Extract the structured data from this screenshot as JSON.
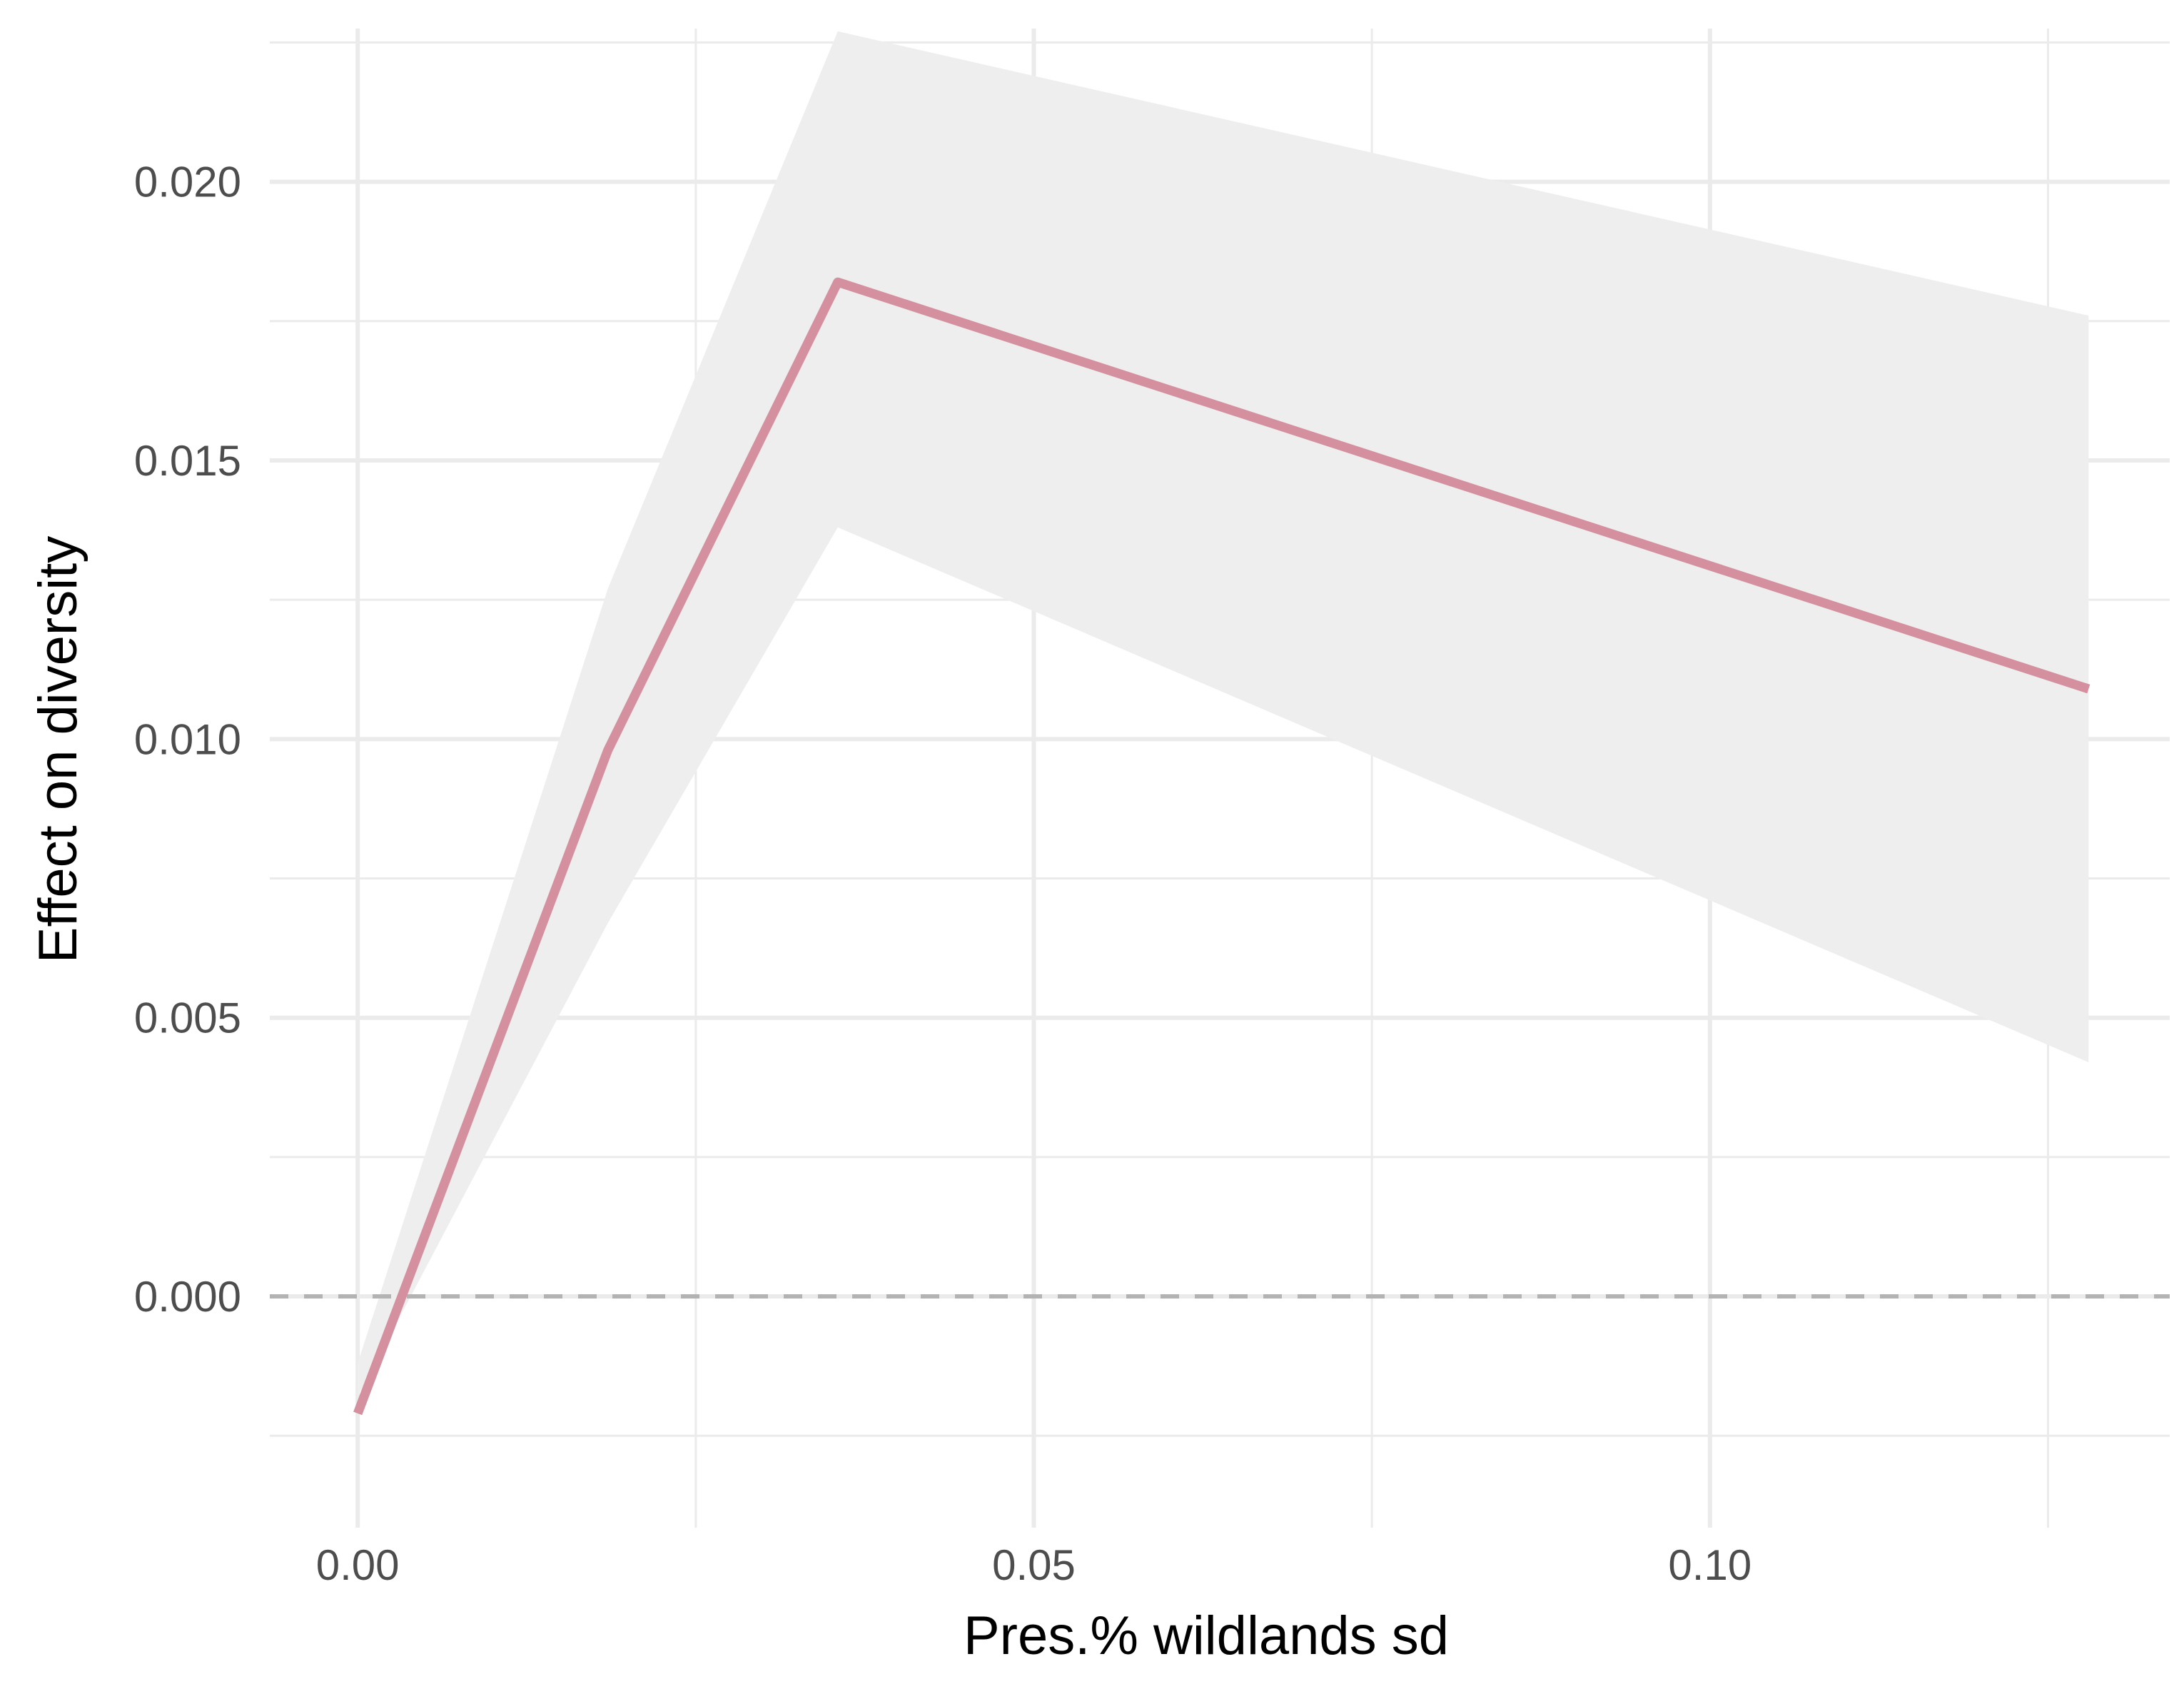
{
  "chart_data": {
    "type": "line",
    "title": "",
    "xlabel": "Pres.% wildlands sd",
    "ylabel": "Effect on diversity",
    "xlim": [
      -0.0065,
      0.134
    ],
    "ylim": [
      -0.00415,
      0.02275
    ],
    "x_ticks": [
      {
        "value": 0.0,
        "label": "0.00"
      },
      {
        "value": 0.05,
        "label": "0.05"
      },
      {
        "value": 0.1,
        "label": "0.10"
      }
    ],
    "x_minor_ticks": [
      0.025,
      0.075,
      0.125
    ],
    "y_ticks": [
      {
        "value": 0.0,
        "label": "0.000"
      },
      {
        "value": 0.005,
        "label": "0.005"
      },
      {
        "value": 0.01,
        "label": "0.010"
      },
      {
        "value": 0.015,
        "label": "0.015"
      },
      {
        "value": 0.02,
        "label": "0.020"
      }
    ],
    "y_minor_ticks": [
      -0.0025,
      0.0025,
      0.0075,
      0.0125,
      0.0175,
      0.0225
    ],
    "grid": true,
    "reference_line": {
      "y": 0.0,
      "style": "dashed",
      "color": "#b3b3b3"
    },
    "series": [
      {
        "x": [
          0.0,
          0.0185,
          0.0355,
          0.128
        ],
        "y": [
          -0.0021,
          0.0098,
          0.0182,
          0.0109
        ],
        "lower": [
          -0.0018,
          0.0067,
          0.0138,
          0.0042
        ],
        "upper": [
          -0.0012,
          0.0127,
          0.0227,
          0.0176
        ],
        "color": "#d4909f",
        "ribbon_color": "#eeeeee"
      }
    ]
  }
}
